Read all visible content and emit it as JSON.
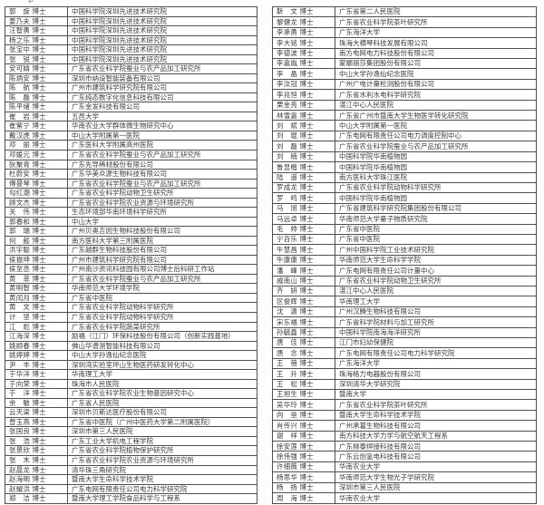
{
  "page": {
    "paragraph_mark": "↵"
  },
  "tables": {
    "left": {
      "rows": [
        {
          "name": "郭　旋 博士",
          "org": "中国科学院深圳先进技术研究院"
        },
        {
          "name": "姜乃夫 博士",
          "org": "中国科学院深圳先进技术研究院"
        },
        {
          "name": "汪智勇 博士",
          "org": "中国科学院深圳先进技术研究院"
        },
        {
          "name": "杨之乐 博士",
          "org": "中国科学院深圳先进技术研究院"
        },
        {
          "name": "张宝中 博士",
          "org": "中国科学院深圳先进技术研究院"
        },
        {
          "name": "张　锐 博士",
          "org": "中国科学院深圳先进技术研究院"
        },
        {
          "name": "安可婧 博士",
          "org": "广东省农业科学院蚕业与农产品加工研究所"
        },
        {
          "name": "陈炳安 博士",
          "org": "深圳市纳设智能装备有限公司"
        },
        {
          "name": "陈　航 博士",
          "org": "广州市建筑科学研究院有限公司"
        },
        {
          "name": "陈　磊 博士",
          "org": "广东纯态数字化信息科技有限公司"
        },
        {
          "name": "陈平绪 博士",
          "org": "广东金发科技有限公司"
        },
        {
          "name": "崔　岩 博士",
          "org": "五邑大学"
        },
        {
          "name": "崔紫宁 博士",
          "org": "华南农业大学群体微生物研究中心"
        },
        {
          "name": "戴汉虎 博士",
          "org": "中山大学附属第一医院"
        },
        {
          "name": "邓　丽 博士",
          "org": "广东医科大学附属高州医院"
        },
        {
          "name": "邓媛元 博士",
          "org": "广东省农业科学院蚕业与农产品加工研究所"
        },
        {
          "name": "狄聚青 博士",
          "org": "广东先导稀材股份有限公司"
        },
        {
          "name": "杜蔚安 博士",
          "org": "广东华美众源生物科技有限公司"
        },
        {
          "name": "傅曼琴 博士",
          "org": "广东省农业科学院蚕业与农产品加工研究所"
        },
        {
          "name": "勾红潮 博士",
          "org": "广东省农业科学院动物卫生研究所"
        },
        {
          "name": "顾文杰 博士",
          "org": "广东省农业科学院农业资源与环境研究所"
        },
        {
          "name": "关　伟 博士",
          "org": "生态环境部华南环境科学研究所"
        },
        {
          "name": "郭春和 博士",
          "org": "中山大学"
        },
        {
          "name": "郭　瑞 博士",
          "org": "广州贝奥吉因生物科技股份有限公司"
        },
        {
          "name": "何　懿 博士",
          "org": "南方医科大学第三附属医院"
        },
        {
          "name": "洪宇聪 博士",
          "org": "广东越群生物科技股份有限公司"
        },
        {
          "name": "侯振坤 博士",
          "org": "广州市建筑科学研究院有限公司"
        },
        {
          "name": "侯至丞 博士",
          "org": "广州南沙资讯科技园有限公司博士后科研工作站"
        },
        {
          "name": "黄　菲 博士",
          "org": "广东省农业科学院蚕业与农产品加工研究所"
        },
        {
          "name": "黄明智 博士",
          "org": "华南师范大学环境学院"
        },
        {
          "name": "黄闰月 博士",
          "org": "广东省中医院"
        },
        {
          "name": "黄　文 博士",
          "org": "广东省农业科学院动物科学研究所"
        },
        {
          "name": "计　坚 博士",
          "org": "广东省农业科学院动物科学研究所"
        },
        {
          "name": "江　彪 博士",
          "org": "广东省农业科学院蔬菜研究所"
        },
        {
          "name": "江海深 博士",
          "org": "励福（江门）环保科技股份有限公司（创新实践基地）"
        },
        {
          "name": "姚顺春 博士",
          "org": "佛山华谱测智能科技有限公司"
        },
        {
          "name": "姚婷婷 博士",
          "org": "中山大学孙逸仙纪念医院"
        },
        {
          "name": "尹　丰 博士",
          "org": "深圳湾实验室坪山生物医药研发转化中心"
        },
        {
          "name": "于华洋 博士",
          "org": "华南理工大学"
        },
        {
          "name": "于向荣 博士",
          "org": "珠海市人民医院"
        },
        {
          "name": "于　洋 博士",
          "org": "广东省农业科学院农业生物基因研究中心"
        },
        {
          "name": "余　敏 博士",
          "org": "广东省人民医院"
        },
        {
          "name": "云天梁 博士",
          "org": "深圳市贝斯达医疗股份有限公司"
        },
        {
          "name": "曾玉燕 博士",
          "org": "广东省中医院（广州中医药大学第二附属医院）"
        },
        {
          "name": "张国良 博士",
          "org": "深圳市第三人民医院"
        },
        {
          "name": "张　浩 博士",
          "org": "广东工业大学机电工程学院"
        },
        {
          "name": "张景欣 博士",
          "org": "广东省农业科学院植物保护研究所"
        },
        {
          "name": "张　木 博士",
          "org": "广东省农业科学院农业资源与环境研究所"
        },
        {
          "name": "赵晨龙 博士",
          "org": "清华珠三角研究院"
        },
        {
          "name": "赵海明 博士",
          "org": "暨南大学生命科学技术学院"
        },
        {
          "name": "赵耀洪 博士",
          "org": "广东电网有限责任公司电力科学研究院"
        },
        {
          "name": "郑　洁 博士",
          "org": "暨南大学理工学院食品科学与工程系"
        }
      ]
    },
    "right": {
      "rows": [
        {
          "name": "靳　文 博士",
          "org": "广东省第二人民医院"
        },
        {
          "name": "黎健龙 博士",
          "org": "广东省农业科学院茶叶研究所"
        },
        {
          "name": "李承勇 博士",
          "org": "广东海洋大学"
        },
        {
          "name": "李大铭 博士",
          "org": "珠海大横琴科技发展有限公司"
        },
        {
          "name": "李德波 博士",
          "org": "南方电网电力科技股份有限公司"
        },
        {
          "name": "李嘉胤 博士",
          "org": "蒙娜丽莎集团股份有限公司"
        },
        {
          "name": "李　晶 博士",
          "org": "中山大学孙逸仙纪念医院"
        },
        {
          "name": "李汝冠 博士",
          "org": "广州广电计量检测股份有限公司"
        },
        {
          "name": "李兆恒 博士",
          "org": "广东省水利水电科学研究院"
        },
        {
          "name": "栗金亮 博士",
          "org": "湛江中心人民医院"
        },
        {
          "name": "林雪嘉 博士",
          "org": "广东省广州市暨南大学生物医学转化研究院"
        },
        {
          "name": "刘　斌 博士",
          "org": "中山大学附属第一医院"
        },
        {
          "name": "刘　琨 博士",
          "org": "广东电网有限责任公司电力调度控制中心"
        },
        {
          "name": "刘　磊 博士",
          "org": "广东省农业科学院蚕业与农产品加工研究所"
        },
        {
          "name": "刘　楠 博士",
          "org": "中国科学院华南植物园"
        },
        {
          "name": "鲁显楷 博士",
          "org": "中国科学院华南植物园"
        },
        {
          "name": "陆　遥 博士",
          "org": "南方医科大学珠江医院"
        },
        {
          "name": "罗成龙 博士",
          "org": "广东省农业科学院动物科学研究所"
        },
        {
          "name": "罗　鸣 博士",
          "org": "中国科学院华南植物园"
        },
        {
          "name": "马　旭 博士",
          "org": "广东省建筑科学研究院集团股份有限公司"
        },
        {
          "name": "马远卓 博士",
          "org": "华南师范大学量子物质研究院"
        },
        {
          "name": "毛　帅 博士",
          "org": "广东省中医院"
        },
        {
          "name": "宁百乐 博士",
          "org": "广东省中医院"
        },
        {
          "name": "牛慧昌 博士",
          "org": "广州中国科学院工业技术研究院"
        },
        {
          "name": "牛康康 博士",
          "org": "华南师范大学生命科学学院"
        },
        {
          "name": "潘　峰 博士",
          "org": "广东电网有限责任公司计量中心"
        },
        {
          "name": "戚南山 博士",
          "org": "广东省农业科学院动物卫生研究所"
        },
        {
          "name": "齐　妍 博士",
          "org": "湛江中心人民医院"
        },
        {
          "name": "区俊辉 博士",
          "org": "华南理工大学"
        },
        {
          "name": "沈　潇 博士",
          "org": "广州汉腾生物科技有限公司"
        },
        {
          "name": "宋东福 博士",
          "org": "广东省科学院材料与加工研究所"
        },
        {
          "name": "孙毓鑫 博士",
          "org": "中国科学院南海海洋研究所"
        },
        {
          "name": "唐　佳 博士",
          "org": "江门市妇幼保健院"
        },
        {
          "name": "唐　念 博士",
          "org": "广东电网有限责任公司电力科学研究院"
        },
        {
          "name": "王　蓓 博士",
          "org": "广东海洋大学"
        },
        {
          "name": "王　升 博士",
          "org": "珠海格力电器股份有限公司"
        },
        {
          "name": "王　松 博士",
          "org": "深圳清华大学研究院"
        },
        {
          "name": "王旭生 博士",
          "org": "暨南大学"
        },
        {
          "name": "吴华玲 博士",
          "org": "广东省农业科学院茶叶研究所"
        },
        {
          "name": "向　垒 博士",
          "org": "暨南大学生命科学技术学院"
        },
        {
          "name": "肖传兴 博士",
          "org": "广州承葛生物科技有限公司"
        },
        {
          "name": "谢　祥 博士",
          "org": "南方科技大学力学与航空航天工程系"
        },
        {
          "name": "徐安莲 博士",
          "org": "广东柳泰焊接科技有限公司"
        },
        {
          "name": "徐伟强 博士",
          "org": "广东云创氢电科技有限公司"
        },
        {
          "name": "许细薇 博士",
          "org": "华南农业大学"
        },
        {
          "name": "杨思华 博士",
          "org": "华南师范大学生物光子学研究院"
        },
        {
          "name": "杨　扬 博士",
          "org": "深圳市第三人民医院"
        },
        {
          "name": "周　海 博士",
          "org": "华南农业大学"
        }
      ]
    }
  }
}
